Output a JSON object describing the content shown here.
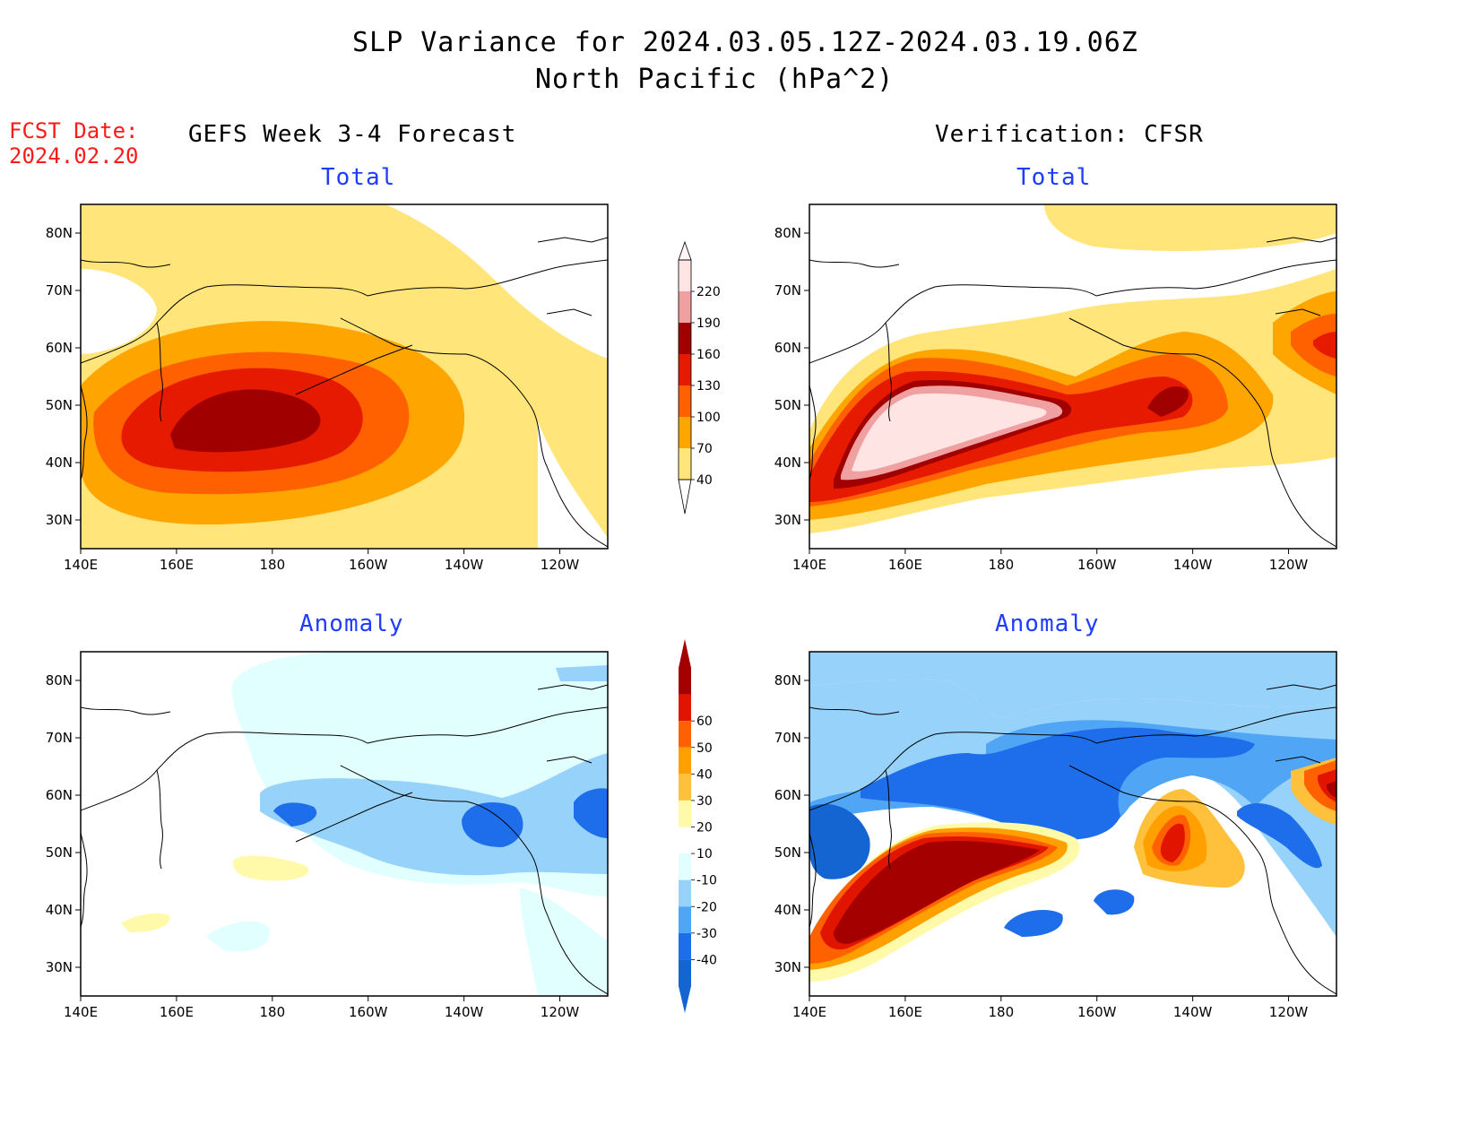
{
  "header": {
    "title_line1": "SLP Variance for 2024.03.05.12Z-2024.03.19.06Z",
    "title_line2": "North Pacific (hPa^2)"
  },
  "forecast_date": {
    "label": "FCST Date:",
    "value": "2024.02.20"
  },
  "columns": {
    "left": "GEFS Week 3-4 Forecast",
    "right": "Verification: CFSR"
  },
  "panels": [
    {
      "id": "fc-total",
      "subtitle": "Total"
    },
    {
      "id": "ver-total",
      "subtitle": "Total"
    },
    {
      "id": "fc-anom",
      "subtitle": "Anomaly"
    },
    {
      "id": "ver-anom",
      "subtitle": "Anomaly"
    }
  ],
  "axes": {
    "lon_ticks": [
      "140E",
      "160E",
      "180",
      "160W",
      "140W",
      "120W"
    ],
    "lat_ticks": [
      "80N",
      "70N",
      "60N",
      "50N",
      "40N",
      "30N"
    ],
    "lon_range_deg_east": [
      140,
      250
    ],
    "lat_range": [
      25,
      85
    ]
  },
  "colorbar_total": {
    "levels": [
      "40",
      "70",
      "100",
      "130",
      "160",
      "190",
      "220"
    ],
    "colors": [
      "#ffe57a",
      "#ffa500",
      "#ff6000",
      "#e61a00",
      "#a00000",
      "#f0a0a0",
      "#ffe4e4"
    ]
  },
  "colorbar_anomaly": {
    "levels": [
      "-40",
      "-30",
      "-20",
      "-10",
      "10",
      "20",
      "30",
      "40",
      "50",
      "60"
    ],
    "colors": [
      "#1464d2",
      "#1e6eeb",
      "#50a5f5",
      "#96d2fa",
      "#e1ffff",
      "#ffffff",
      "#fffaaa",
      "#ffc03c",
      "#ffa000",
      "#ff6000",
      "#e11400",
      "#a50000"
    ]
  },
  "colors": {
    "fcst_date": "#ff1a1a",
    "subtitle": "#1f3cff"
  }
}
